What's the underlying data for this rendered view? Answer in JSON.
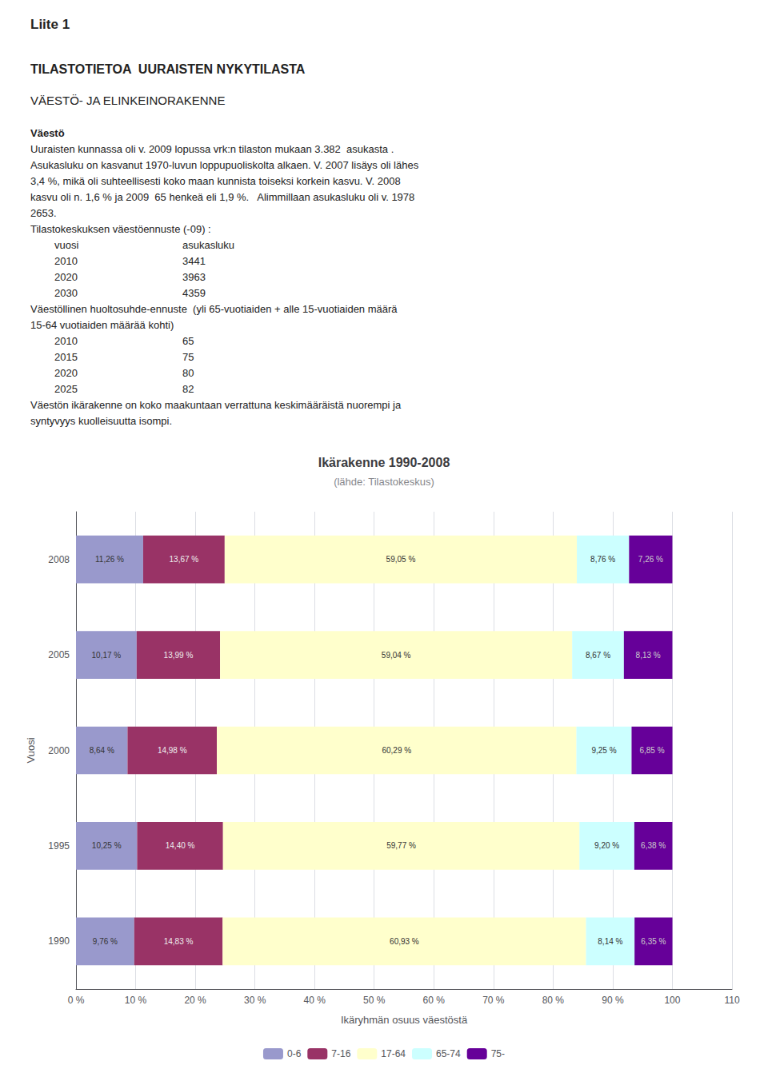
{
  "chart_data": {
    "type": "bar",
    "orientation": "horizontal",
    "stacked": true,
    "title": "Ikärakenne 1990-2008",
    "subtitle": "(lähde: Tilastokeskus)",
    "xlabel": "Ikäryhmän osuus väestöstä",
    "ylabel": "Vuosi",
    "annotations": [
      "Liite 1",
      "TILASTOTIETOA  UURAISTEN NYKYTILASTA",
      "VÄESTÖ- JA ELINKEINORAKENNE",
      "Väestö",
      "Uuraisten kunnassa oli v. 2009 lopussa vrk:n tilaston mukaan 3.382  asukasta .",
      "Asukasluku on kasvanut 1970-luvun loppupuoliskolta alkaen. V. 2007 lisäys oli lähes",
      "3,4 %, mikä oli suhteellisesti koko maan kunnista toiseksi korkein kasvu. V. 2008",
      "kasvu oli n. 1,6 % ja 2009  65 henkeä eli 1,9 %.   Alimmillaan asukasluku oli v. 1978",
      "2653.",
      "Tilastokeskuksen väestöennuste (-09) :",
      [
        "vuosi",
        "asukasluku"
      ],
      [
        "2010",
        "3441"
      ],
      [
        "2020",
        "3963"
      ],
      [
        "2030",
        "4359"
      ],
      "Väestöllinen huoltosuhde-ennuste  (yli 65-vuotiaiden + alle 15-vuotiaiden määrä",
      "15-64 vuotiaiden määrää kohti)",
      [
        "2010",
        "65"
      ],
      [
        "2015",
        "75"
      ],
      [
        "2020",
        "80"
      ],
      [
        "2025",
        "82"
      ],
      "Väestön ikärakenne on koko maakuntaan verrattuna keskimääräistä nuorempi ja",
      "syntyvyys kuolleisuutta isompi."
    ],
    "categories": [
      "2008",
      "2005",
      "2000",
      "1995",
      "1990"
    ],
    "series": [
      {
        "name": "0-6",
        "color": "#9999cc",
        "values": [
          11.26,
          10.17,
          8.64,
          10.25,
          9.76
        ],
        "value_labels": [
          "11,26 %",
          "10,17 %",
          "8,64 %",
          "10,25 %",
          "9,76 %"
        ]
      },
      {
        "name": "7-16",
        "color": "#993366",
        "values": [
          13.67,
          13.99,
          14.98,
          14.4,
          14.83
        ],
        "value_labels": [
          "13,67 %",
          "13,99 %",
          "14,98 %",
          "14,40 %",
          "14,83 %"
        ]
      },
      {
        "name": "17-64",
        "color": "#ffffcc",
        "values": [
          59.05,
          59.04,
          60.29,
          59.77,
          60.93
        ],
        "value_labels": [
          "59,05 %",
          "59,04 %",
          "60,29 %",
          "59,77 %",
          "60,93 %"
        ]
      },
      {
        "name": "65-74",
        "color": "#ccffff",
        "values": [
          8.76,
          8.67,
          9.25,
          9.2,
          8.14
        ],
        "value_labels": [
          "8,76 %",
          "8,67 %",
          "9,25 %",
          "9,20 %",
          "8,14 %"
        ]
      },
      {
        "name": "75-",
        "color": "#660099",
        "values": [
          7.26,
          8.13,
          6.85,
          6.38,
          6.35
        ],
        "value_labels": [
          "7,26 %",
          "8,13 %",
          "6,85 %",
          "6,38 %",
          "6,35 %"
        ]
      }
    ],
    "data_labels": true,
    "xlim": [
      0,
      110
    ],
    "xticks": [
      {
        "value": 0,
        "label": "0 %"
      },
      {
        "value": 10,
        "label": "10 %"
      },
      {
        "value": 20,
        "label": "20 %"
      },
      {
        "value": 30,
        "label": "30 %"
      },
      {
        "value": 40,
        "label": "40 %"
      },
      {
        "value": 50,
        "label": "50 %"
      },
      {
        "value": 60,
        "label": "60 %"
      },
      {
        "value": 70,
        "label": "70 %"
      },
      {
        "value": 80,
        "label": "80 %"
      },
      {
        "value": 90,
        "label": "90 %"
      },
      100,
      110
    ],
    "grid": true,
    "legend": "bottom"
  }
}
